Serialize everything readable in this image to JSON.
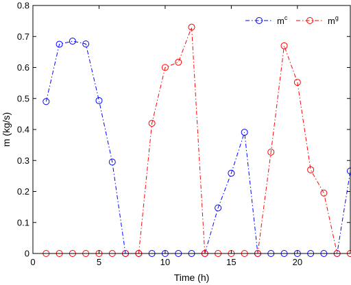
{
  "chart_data": {
    "type": "line",
    "xlabel": "Time (h)",
    "ylabel": "m (kg/s)",
    "xlim": [
      0,
      24
    ],
    "ylim": [
      0,
      0.8
    ],
    "xticks": [
      0,
      5,
      10,
      15,
      20
    ],
    "yticks": [
      0,
      0.1,
      0.2,
      0.3,
      0.4,
      0.5,
      0.6,
      0.7,
      0.8
    ],
    "xtick_labels": [
      "0",
      "5",
      "10",
      "15",
      "20"
    ],
    "ytick_labels": [
      "0",
      "0.1",
      "0.2",
      "0.3",
      "0.4",
      "0.5",
      "0.6",
      "0.7",
      "0.8"
    ],
    "grid": false,
    "legend_position": "top-right",
    "x": [
      1,
      2,
      3,
      4,
      5,
      6,
      7,
      8,
      9,
      10,
      11,
      12,
      13,
      14,
      15,
      16,
      17,
      18,
      19,
      20,
      21,
      22,
      23,
      24
    ],
    "series": [
      {
        "base": "m",
        "sup": "c",
        "color": "#0000ff",
        "marker": "circle",
        "line_style": "dash-dot",
        "values": [
          0.49,
          0.675,
          0.685,
          0.676,
          0.493,
          0.295,
          0,
          0,
          0,
          0,
          0,
          0,
          0,
          0.147,
          0.259,
          0.391,
          0,
          0,
          0,
          0,
          0,
          0,
          0,
          0.266
        ]
      },
      {
        "base": "m",
        "sup": "g",
        "color": "#ff0000",
        "marker": "circle",
        "line_style": "dash-dot",
        "values": [
          0,
          0,
          0,
          0,
          0,
          0,
          0,
          0,
          0.42,
          0.6,
          0.617,
          0.73,
          0,
          0,
          0,
          0,
          0,
          0.327,
          0.67,
          0.552,
          0.27,
          0.195,
          0,
          0
        ]
      }
    ]
  }
}
